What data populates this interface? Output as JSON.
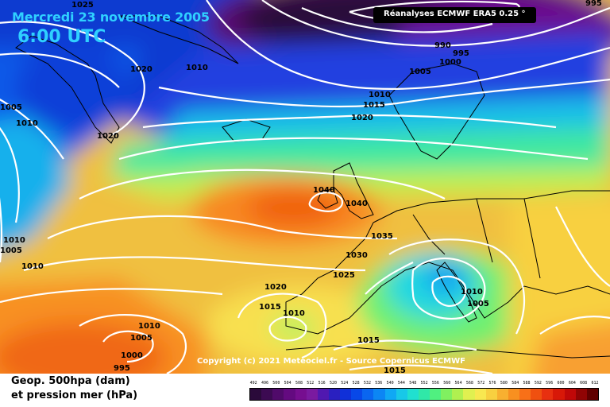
{
  "header": {
    "date": "Mercredi 23 novembre 2005",
    "time": "6:00 UTC"
  },
  "source_label": "Réanalyses ECMWF ERA5 0.25 °",
  "copyright": "Copyright (c) 2021 Meteociel.fr - Source Copernicus ECMWF",
  "legend": {
    "line1": "Geop. 500hpa (dam)",
    "line2": "et pression mer (hPa)",
    "scale_values": [
      "492",
      "496",
      "500",
      "504",
      "508",
      "512",
      "516",
      "520",
      "524",
      "528",
      "532",
      "536",
      "540",
      "544",
      "548",
      "552",
      "556",
      "560",
      "564",
      "568",
      "572",
      "576",
      "580",
      "584",
      "588",
      "592",
      "596",
      "600",
      "604",
      "608",
      "612"
    ],
    "scale_colors": [
      "#2a0a3a",
      "#3c0a52",
      "#500a6a",
      "#640a80",
      "#760e90",
      "#7a1aa0",
      "#5018b0",
      "#2a20c0",
      "#1030d8",
      "#0848e8",
      "#0a66f0",
      "#0c86f4",
      "#10a8f4",
      "#18c8e8",
      "#20e0d0",
      "#30e8a8",
      "#50f080",
      "#80f060",
      "#b0f050",
      "#e0f050",
      "#f8e850",
      "#f8d040",
      "#f8b030",
      "#f89020",
      "#f87018",
      "#f05010",
      "#e83010",
      "#d81808",
      "#c00808",
      "#900404",
      "#600000"
    ]
  },
  "isobar_labels": [
    "1025",
    "1020",
    "1010",
    "1005",
    "1010",
    "1020",
    "995",
    "990",
    "1000",
    "995",
    "1005",
    "1010",
    "1015",
    "1020",
    "1040",
    "1040",
    "1035",
    "1030",
    "1025",
    "1020",
    "1015",
    "1010",
    "1010",
    "1005",
    "1010",
    "1005",
    "1000",
    "995",
    "1015",
    "1015",
    "1010",
    "1005",
    "1010"
  ]
}
